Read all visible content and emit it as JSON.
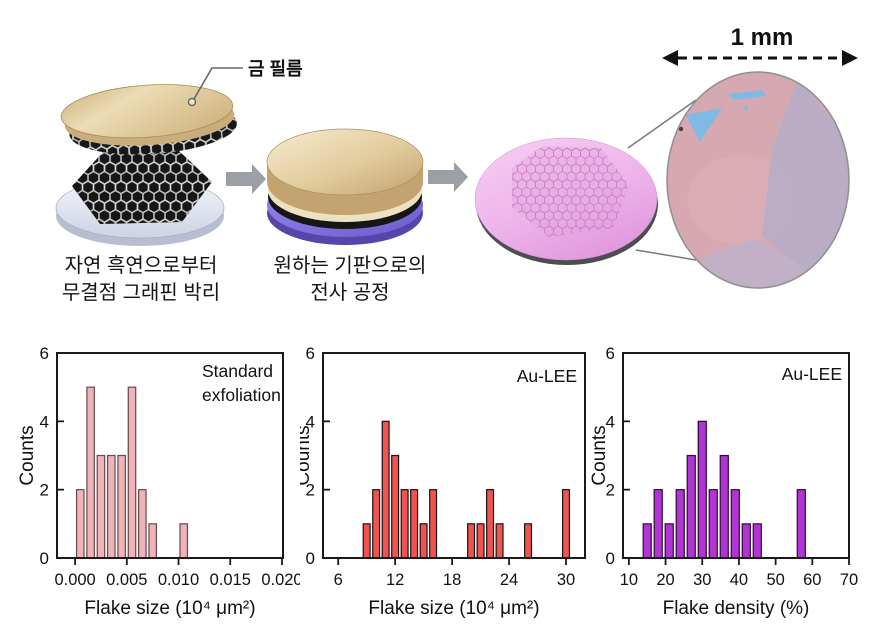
{
  "diagram": {
    "gold_film_label": "금 필름",
    "scale_label": "1 mm",
    "step1_caption_line1": "자연 흑연으로부터",
    "step1_caption_line2": "무결점 그래핀 박리",
    "step2_caption_line1": "원하는 기판으로의",
    "step2_caption_line2": "전사 공정",
    "colors": {
      "gold": "#e6d2a8",
      "gold_dark": "#c2a172",
      "substrate_gray": "#e9edf5",
      "graphite_black": "#161616",
      "purple_base": "#8476e3",
      "pink_wafer": "#eeb0e8",
      "microscope_pink": "#d6a8b1",
      "flake_blue": "#7fb9e6",
      "arrow_gray": "#9aa0a6"
    }
  },
  "chart_data": [
    {
      "type": "bar",
      "annotation_lines": [
        "Standard",
        "exfoliation"
      ],
      "xlabel": "Flake size (10⁴ μm²)",
      "ylabel": "Counts",
      "bar_color": "#f3b2b7",
      "bar_edge_color": "#5f4c4c",
      "x": [
        0.0005,
        0.0015,
        0.0025,
        0.0035,
        0.0045,
        0.0055,
        0.0065,
        0.0075,
        0.0105
      ],
      "values": [
        2,
        5,
        3,
        3,
        3,
        5,
        2,
        1,
        1
      ],
      "bar_width": 0.00072,
      "xlim": [
        -0.00175,
        0.0201
      ],
      "ylim": [
        0,
        6
      ],
      "xticks": [
        0,
        0.005,
        0.01,
        0.015,
        0.02
      ],
      "xtick_labels": [
        "0.000",
        "0.005",
        "0.010",
        "0.015",
        "0.020"
      ],
      "yticks": [
        0,
        2,
        4,
        6
      ],
      "ytick_labels": [
        "0",
        "2",
        "4",
        "6"
      ],
      "grid": false,
      "legend": "none"
    },
    {
      "type": "bar",
      "annotation_lines": [
        "Au-LEE"
      ],
      "xlabel": "Flake size (10⁴ μm²)",
      "ylabel": "Counts",
      "bar_color": "#f25350",
      "bar_edge_color": "#141414",
      "x": [
        9,
        10,
        11,
        12,
        13,
        14,
        15,
        16,
        20,
        21,
        22,
        23,
        26,
        30
      ],
      "values": [
        1,
        2,
        4,
        3,
        2,
        2,
        1,
        2,
        1,
        1,
        2,
        1,
        1,
        2
      ],
      "bar_width": 0.72,
      "xlim": [
        4.4,
        32
      ],
      "ylim": [
        0,
        6
      ],
      "xticks": [
        6,
        12,
        18,
        24,
        30
      ],
      "xtick_labels": [
        "6",
        "12",
        "18",
        "24",
        "30"
      ],
      "yticks": [
        0,
        2,
        4,
        6
      ],
      "ytick_labels": [
        "0",
        "2",
        "4",
        "6"
      ],
      "grid": false,
      "legend": "none"
    },
    {
      "type": "bar",
      "annotation_lines": [
        "Au-LEE"
      ],
      "xlabel": "Flake density (%)",
      "ylabel": "Counts",
      "bar_color": "#b233d6",
      "bar_edge_color": "#2b1030",
      "x": [
        15,
        18,
        21,
        24,
        27,
        30,
        33,
        36,
        39,
        42,
        45,
        57
      ],
      "values": [
        1,
        2,
        1,
        2,
        3,
        4,
        2,
        3,
        2,
        1,
        1,
        2
      ],
      "bar_width": 2.2,
      "xlim": [
        8.4,
        70
      ],
      "ylim": [
        0,
        6
      ],
      "xticks": [
        10,
        20,
        30,
        40,
        50,
        60,
        70
      ],
      "xtick_labels": [
        "10",
        "20",
        "30",
        "40",
        "50",
        "60",
        "70"
      ],
      "yticks": [
        0,
        2,
        4,
        6
      ],
      "ytick_labels": [
        "0",
        "2",
        "4",
        "6"
      ],
      "grid": false,
      "legend": "none"
    }
  ]
}
